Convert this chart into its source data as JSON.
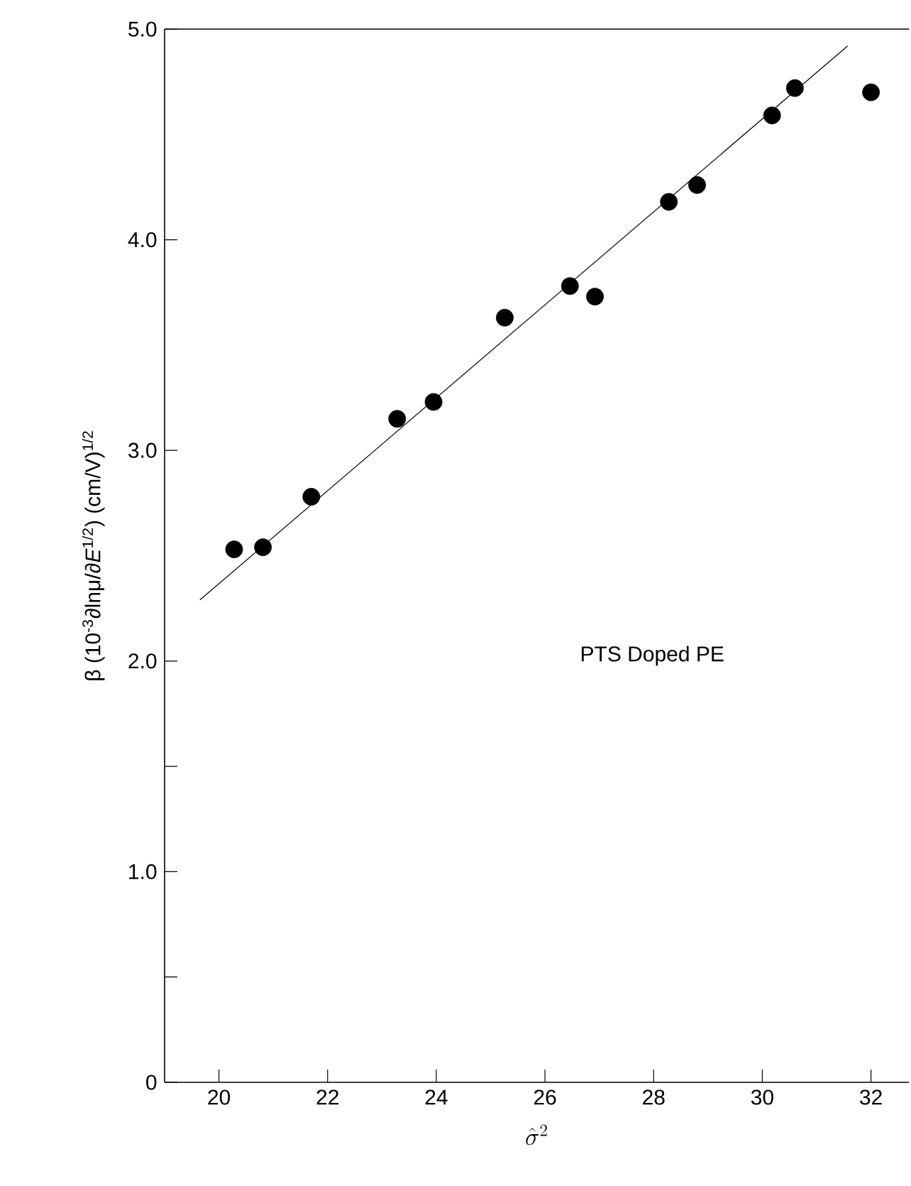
{
  "chart_data": {
    "type": "scatter",
    "xlabel": "\\hat{\\sigma}^{2}",
    "ylabel": "β (10$^{-3}$∂lnμ/∂*E*$^{1/2}$) (cm/V)$^{1/2}$",
    "annotations": [
      "PTS Doped PE"
    ],
    "series": [
      {
        "color": "#000000",
        "marker": "circle",
        "x": [
          20.28,
          20.81,
          21.7,
          23.28,
          23.95,
          25.26,
          26.46,
          26.92,
          28.28,
          28.8,
          30.18,
          30.6,
          32.0
        ],
        "values": [
          2.53,
          2.54,
          2.78,
          3.15,
          3.23,
          3.63,
          3.78,
          3.73,
          4.18,
          4.26,
          4.59,
          4.72,
          4.7
        ]
      },
      {
        "type": "line",
        "color": "#000000",
        "line_style": "solid",
        "x": [
          19.65,
          31.57
        ],
        "values": [
          2.29,
          4.92
        ]
      }
    ],
    "xlim": [
      19,
      32.7
    ],
    "ylim": [
      0,
      5
    ],
    "xticks": [
      20,
      22,
      24,
      26,
      28,
      30,
      32
    ],
    "yticks": [
      0,
      {
        "value": 0.5,
        "label": null
      },
      {
        "value": 1,
        "label": "1.0"
      },
      {
        "value": 1.5,
        "label": null
      },
      {
        "value": 2,
        "label": "2.0"
      },
      {
        "value": 3,
        "label": "3.0"
      },
      {
        "value": 4,
        "label": "4.0"
      },
      {
        "value": 5,
        "label": "5.0"
      }
    ],
    "grid": false
  }
}
